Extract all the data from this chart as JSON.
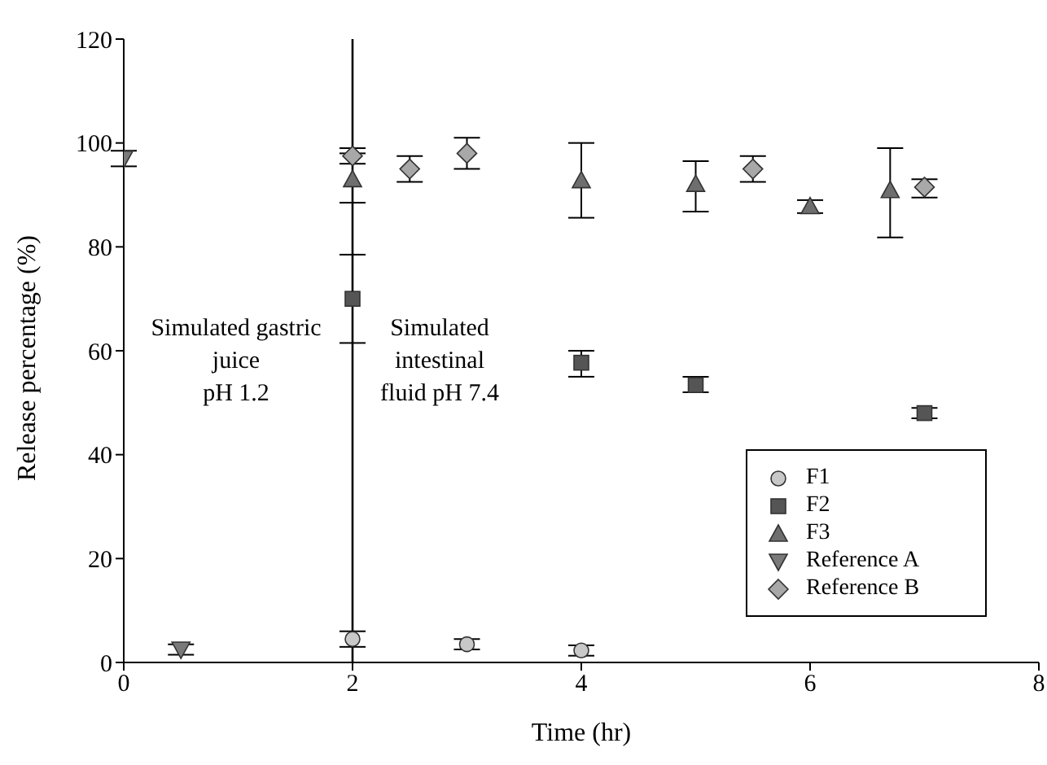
{
  "chart_data": {
    "type": "scatter",
    "xlabel": "Time (hr)",
    "ylabel": "Release percentage (%)",
    "xlim": [
      0,
      8
    ],
    "xticks": [
      0,
      2,
      4,
      6,
      8
    ],
    "ylim": [
      0,
      120
    ],
    "yticks": [
      0,
      20,
      40,
      60,
      80,
      100,
      120
    ],
    "grid": false,
    "legend": "bottom right",
    "ref_lines": [
      {
        "axis": "x",
        "value": 2,
        "color": "#000000"
      }
    ],
    "annotations": [
      "Simulated gastric\njuice\npH 1.2",
      "Simulated\nintestinal\nfluid pH 7.4"
    ],
    "series": [
      {
        "name": "F1",
        "color": "#c8c8c8",
        "marker": "circle",
        "x": [
          2,
          3,
          4
        ],
        "values": [
          4.5,
          3.5,
          2.3
        ],
        "errors": [
          1.5,
          1,
          1
        ]
      },
      {
        "name": "F2",
        "color": "#555555",
        "marker": "square",
        "x": [
          2,
          4,
          5,
          7
        ],
        "values": [
          70,
          57.7,
          53.4,
          48
        ],
        "errors": [
          [
            61.5,
            78.5
          ],
          [
            55,
            60
          ],
          [
            52,
            55
          ],
          [
            47,
            49
          ]
        ]
      },
      {
        "name": "F3",
        "color": "#6e6e6e",
        "marker": "triangle",
        "x": [
          2,
          4,
          5,
          6,
          6.7
        ],
        "values": [
          93,
          92.8,
          92.1,
          87.8,
          90.9
        ],
        "errors": [
          [
            88.5,
            98
          ],
          [
            85.6,
            100
          ],
          [
            86.8,
            96.5
          ],
          [
            86.5,
            89
          ],
          [
            81.8,
            99
          ]
        ]
      },
      {
        "name": "Reference A",
        "color": "#7a7a7a",
        "marker": "triangle-down",
        "x": [
          0,
          0.5
        ],
        "values": [
          97,
          2.5
        ],
        "errors": [
          1.5,
          1
        ]
      },
      {
        "name": "Reference B",
        "color": "#a8a8a8",
        "marker": "diamond",
        "x": [
          2,
          2.5,
          3,
          5.5,
          7
        ],
        "values": [
          97.5,
          95,
          98,
          95,
          91.5
        ],
        "errors": [
          1.5,
          [
            92.5,
            97.5
          ],
          [
            95,
            101
          ],
          [
            92.5,
            97.5
          ],
          [
            89.5,
            93
          ]
        ]
      }
    ]
  }
}
